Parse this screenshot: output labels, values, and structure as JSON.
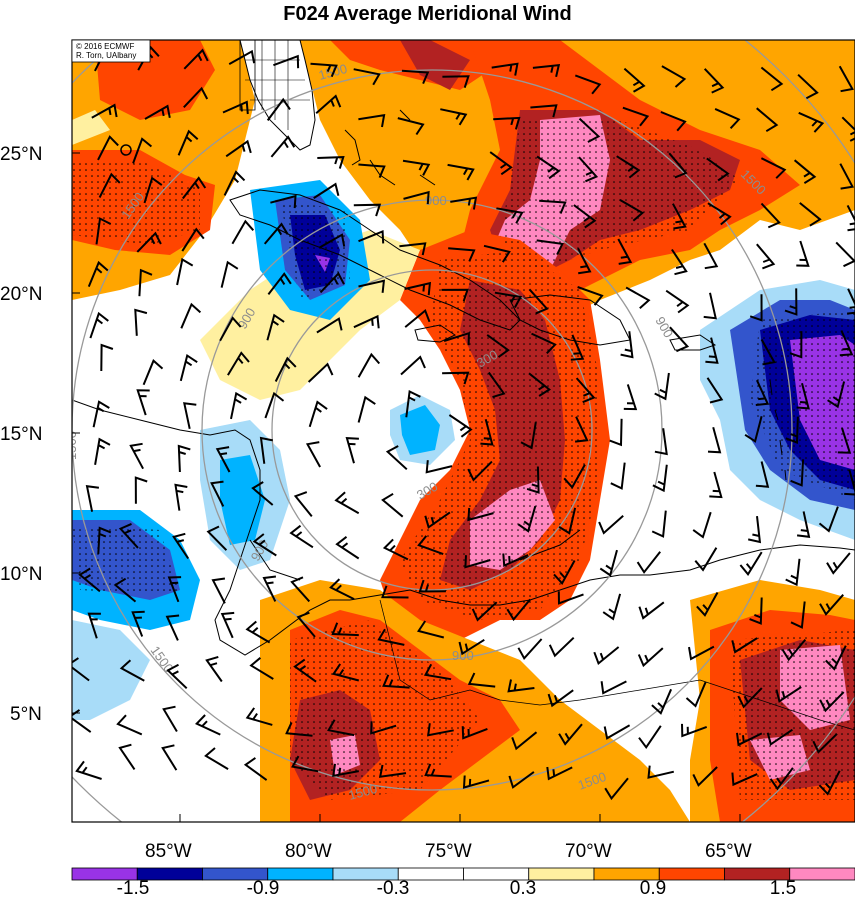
{
  "title": "F024 Average Meridional Wind",
  "credit": {
    "line1": "© 2016 ECMWF",
    "line2": "R. Torn, UAlbany"
  },
  "map": {
    "lat_labels": [
      "25°N",
      "20°N",
      "15°N",
      "10°N",
      "5°N"
    ],
    "lon_labels": [
      "85°W",
      "80°W",
      "75°W",
      "70°W",
      "65°W"
    ],
    "range_ring_labels": [
      "300",
      "300",
      "900",
      "900",
      "900",
      "900",
      "900",
      "1500",
      "1500",
      "1500",
      "1500",
      "1500",
      "1500",
      "1500"
    ],
    "ring_color": "#999999",
    "coast_color": "#000000"
  },
  "colorbar": {
    "colors": [
      "#9933e6",
      "#000099",
      "#3355cc",
      "#00b3ff",
      "#a8dcf8",
      "#ffffff",
      "#ffffff",
      "#fff0a0",
      "#ffa500",
      "#ff4500",
      "#b22222",
      "#ff88c0"
    ],
    "labels": [
      "-1.5",
      "-0.9",
      "-0.3",
      "0.3",
      "0.9",
      "1.5"
    ]
  }
}
